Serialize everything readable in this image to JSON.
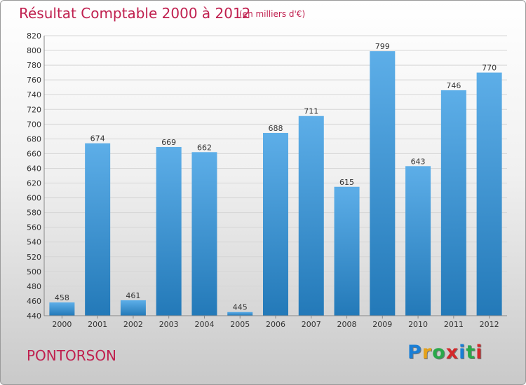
{
  "title": "Résultat Comptable 2000 à 2012",
  "subtitle": "(en milliers d'€)",
  "city": "PONTORSON",
  "logo": {
    "letters": [
      "P",
      "r",
      "o",
      "x",
      "i",
      "t",
      "i"
    ],
    "colors": [
      "#1a7fd6",
      "#e6a21a",
      "#2aa84a",
      "#d4282b",
      "#1a7fd6",
      "#2aa84a",
      "#d4282b"
    ]
  },
  "colors": {
    "accent": "#c0204f",
    "bar_top": "#5daee8",
    "bar_bottom": "#2379b8"
  },
  "chart_data": {
    "type": "bar",
    "title": "Résultat Comptable 2000 à 2012",
    "subtitle": "(en milliers d'€)",
    "categories": [
      "2000",
      "2001",
      "2002",
      "2003",
      "2004",
      "2005",
      "2006",
      "2007",
      "2008",
      "2009",
      "2010",
      "2011",
      "2012"
    ],
    "values": [
      458,
      674,
      461,
      669,
      662,
      445,
      688,
      711,
      615,
      799,
      643,
      746,
      770
    ],
    "ylim": [
      440,
      820
    ],
    "ytick_step": 20,
    "grid": true
  }
}
